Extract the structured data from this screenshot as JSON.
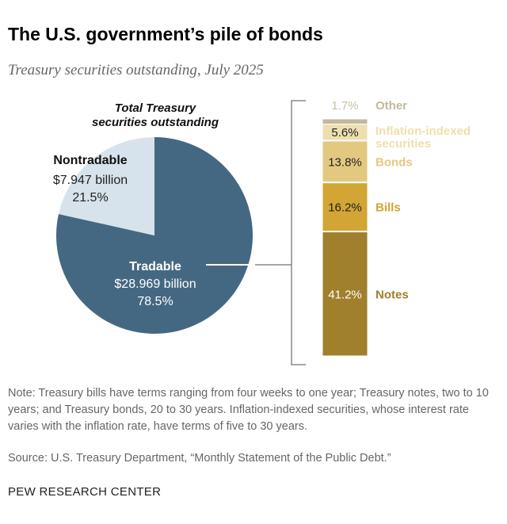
{
  "title": "The U.S. government’s pile of bonds",
  "subtitle": "Treasury securities outstanding, July 2025",
  "chart_data": [
    {
      "type": "pie",
      "title": "Total Treasury securities outstanding",
      "title_lines": [
        "Total Treasury",
        "securities outstanding"
      ],
      "slices": [
        {
          "name": "Tradable",
          "amount": "$28.969 billion",
          "value": 78.5,
          "label": "78.5%",
          "color": "#456882"
        },
        {
          "name": "Nontradable",
          "amount": "$7.947 billion",
          "value": 21.5,
          "label": "21.5%",
          "color": "#d6e3ec"
        }
      ]
    },
    {
      "type": "bar",
      "stacked": true,
      "breakdown_of": "Tradable",
      "segments": [
        {
          "name": "Notes",
          "value": 41.2,
          "label": "41.2%",
          "color": "#a07f2d",
          "text_color": "#a07f2d",
          "value_color": "#ffffff"
        },
        {
          "name": "Bills",
          "value": 16.2,
          "label": "16.2%",
          "color": "#d2a534",
          "text_color": "#d2a534",
          "value_color": "#222222"
        },
        {
          "name": "Bonds",
          "value": 13.8,
          "label": "13.8%",
          "color": "#e3c880",
          "text_color": "#e3c880",
          "value_color": "#222222"
        },
        {
          "name": "Inflation-indexed securities",
          "name_lines": [
            "Inflation-indexed",
            "securities"
          ],
          "value": 5.6,
          "label": "5.6%",
          "color": "#efdfb0",
          "text_color": "#f0dfaa",
          "value_color": "#222222"
        },
        {
          "name": "Other",
          "value": 1.7,
          "label": "1.7%",
          "color": "#c1b89d",
          "text_color": "#c1b89d",
          "value_color": "#c8c0a8"
        }
      ]
    }
  ],
  "note": "Note: Treasury bills have terms ranging from four weeks to one year; Treasury notes, two to 10 years; and Treasury bonds, 20 to 30 years. Inflation-indexed securities, whose interest rate varies with the inflation rate, have terms of five to 30 years.",
  "source": "Source: U.S. Treasury Department, “Monthly Statement of the Public Debt.”",
  "brand": "PEW RESEARCH CENTER"
}
